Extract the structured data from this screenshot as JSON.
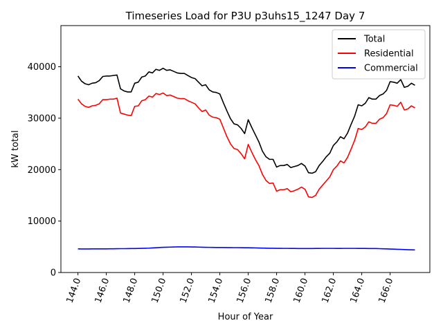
{
  "chart_data": {
    "type": "line",
    "title": "Timeseries Load for P3U p3uhs15_1247  Day 7",
    "xlabel": "Hour of Year",
    "ylabel": "kW total",
    "xlim": [
      142.8,
      168.8
    ],
    "ylim": [
      0,
      48000
    ],
    "xticks": [
      144,
      146,
      148,
      150,
      152,
      154,
      156,
      158,
      160,
      162,
      164,
      166
    ],
    "xtick_labels": [
      "144.0",
      "146.0",
      "148.0",
      "150.0",
      "152.0",
      "154.0",
      "156.0",
      "158.0",
      "160.0",
      "162.0",
      "164.0",
      "166.0"
    ],
    "yticks": [
      0,
      10000,
      20000,
      30000,
      40000
    ],
    "ytick_labels": [
      "0",
      "10000",
      "20000",
      "30000",
      "40000"
    ],
    "legend_position": "top-right",
    "x": [
      144.0,
      144.25,
      144.5,
      144.75,
      145.0,
      145.25,
      145.5,
      145.75,
      146.0,
      146.25,
      146.5,
      146.75,
      147.0,
      147.25,
      147.5,
      147.75,
      148.0,
      148.25,
      148.5,
      148.75,
      149.0,
      149.25,
      149.5,
      149.75,
      150.0,
      150.25,
      150.5,
      150.75,
      151.0,
      151.25,
      151.5,
      151.75,
      152.0,
      152.25,
      152.5,
      152.75,
      153.0,
      153.25,
      153.5,
      153.75,
      154.0,
      154.25,
      154.5,
      154.75,
      155.0,
      155.25,
      155.5,
      155.75,
      156.0,
      156.25,
      156.5,
      156.75,
      157.0,
      157.25,
      157.5,
      157.75,
      158.0,
      158.25,
      158.5,
      158.75,
      159.0,
      159.25,
      159.5,
      159.75,
      160.0,
      160.25,
      160.5,
      160.75,
      161.0,
      161.25,
      161.5,
      161.75,
      162.0,
      162.25,
      162.5,
      162.75,
      163.0,
      163.25,
      163.5,
      163.75,
      164.0,
      164.25,
      164.5,
      164.75,
      165.0,
      165.25,
      165.5,
      165.75,
      166.0,
      166.25,
      166.5,
      166.75,
      167.0,
      167.25,
      167.5,
      167.75
    ],
    "series": [
      {
        "name": "Total",
        "color": "#000000",
        "values": [
          38200,
          37200,
          36700,
          36500,
          36800,
          36900,
          37300,
          38100,
          38200,
          38200,
          38300,
          38400,
          35700,
          35300,
          35100,
          35100,
          36800,
          37000,
          38000,
          38200,
          39000,
          38800,
          39500,
          39300,
          39700,
          39300,
          39400,
          39100,
          38800,
          38700,
          38700,
          38300,
          37900,
          37700,
          37000,
          36300,
          36500,
          35500,
          35100,
          35000,
          34700,
          33000,
          31400,
          29900,
          28900,
          28700,
          28000,
          27000,
          29700,
          28200,
          26800,
          25400,
          23600,
          22500,
          22000,
          22000,
          20500,
          20800,
          20800,
          21000,
          20400,
          20600,
          20800,
          21200,
          20700,
          19400,
          19300,
          19600,
          20800,
          21600,
          22500,
          23200,
          24700,
          25400,
          26400,
          26000,
          27100,
          28800,
          30400,
          32600,
          32400,
          32900,
          34000,
          33700,
          33700,
          34400,
          34700,
          35400,
          37100,
          37000,
          36800,
          37500,
          36000,
          36200,
          36800,
          36400
        ]
      },
      {
        "name": "Residential",
        "color": "#ff0000",
        "values": [
          33700,
          32800,
          32300,
          32100,
          32400,
          32500,
          32800,
          33600,
          33600,
          33700,
          33700,
          33900,
          31000,
          30800,
          30600,
          30500,
          32300,
          32400,
          33400,
          33600,
          34300,
          34100,
          34800,
          34600,
          34900,
          34400,
          34500,
          34200,
          33900,
          33800,
          33800,
          33400,
          33100,
          32800,
          32000,
          31300,
          31600,
          30600,
          30200,
          30100,
          29800,
          28100,
          26400,
          25000,
          24100,
          23900,
          23100,
          22100,
          24900,
          23400,
          22000,
          20800,
          19100,
          17900,
          17300,
          17400,
          15800,
          16100,
          16100,
          16300,
          15700,
          15900,
          16200,
          16600,
          16200,
          14700,
          14600,
          15000,
          16200,
          17000,
          17800,
          18600,
          20000,
          20700,
          21700,
          21300,
          22400,
          24000,
          25700,
          28000,
          27800,
          28300,
          29300,
          29000,
          29000,
          29800,
          30100,
          30900,
          32600,
          32500,
          32300,
          33100,
          31600,
          31800,
          32400,
          32000
        ]
      },
      {
        "name": "Commercial",
        "color": "#0000ff",
        "values": [
          4600,
          4580,
          4580,
          4580,
          4590,
          4590,
          4590,
          4600,
          4600,
          4610,
          4620,
          4630,
          4640,
          4640,
          4650,
          4660,
          4670,
          4680,
          4700,
          4720,
          4740,
          4780,
          4820,
          4860,
          4900,
          4920,
          4940,
          4960,
          4980,
          4990,
          4990,
          4980,
          4970,
          4960,
          4940,
          4920,
          4900,
          4890,
          4880,
          4870,
          4860,
          4860,
          4850,
          4850,
          4840,
          4840,
          4830,
          4820,
          4810,
          4800,
          4790,
          4770,
          4750,
          4730,
          4720,
          4710,
          4700,
          4700,
          4690,
          4690,
          4680,
          4680,
          4670,
          4670,
          4670,
          4670,
          4670,
          4680,
          4680,
          4690,
          4690,
          4690,
          4690,
          4680,
          4680,
          4690,
          4690,
          4690,
          4690,
          4680,
          4680,
          4680,
          4670,
          4670,
          4660,
          4640,
          4620,
          4590,
          4560,
          4540,
          4510,
          4490,
          4460,
          4430,
          4410,
          4390
        ]
      }
    ]
  }
}
